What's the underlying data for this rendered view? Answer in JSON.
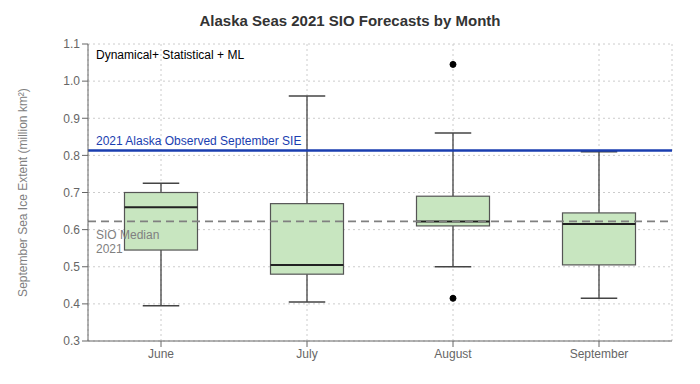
{
  "chart_data": {
    "type": "box",
    "title": "Alaska Seas 2021 SIO Forecasts by Month",
    "ylabel": "September Sea Ice Extent (million km²)",
    "categories": [
      "June",
      "July",
      "August",
      "September"
    ],
    "boxes": [
      {
        "low": 0.395,
        "q1": 0.545,
        "median": 0.66,
        "q3": 0.7,
        "high": 0.725,
        "fliers": []
      },
      {
        "low": 0.405,
        "q1": 0.48,
        "median": 0.505,
        "q3": 0.67,
        "high": 0.96,
        "fliers": []
      },
      {
        "low": 0.5,
        "q1": 0.61,
        "median": 0.622,
        "q3": 0.69,
        "high": 0.86,
        "fliers": [
          0.415,
          1.045
        ]
      },
      {
        "low": 0.415,
        "q1": 0.505,
        "median": 0.615,
        "q3": 0.645,
        "high": 0.81,
        "fliers": []
      }
    ],
    "color": "#c8e6c0",
    "reference_lines": [
      {
        "value": 0.813,
        "label": "2021 Alaska Observed September SIE",
        "color": "#1a3eb0",
        "line_style": "solid"
      },
      {
        "value": 0.622,
        "label": "SIO Median\n2021",
        "color": "#808080",
        "line_style": "dashed"
      }
    ],
    "annotations": [
      "Dynamical+ Statistical + ML"
    ],
    "ylim": [
      0.3,
      1.1
    ],
    "yticks": [
      0.3,
      0.4,
      0.5,
      0.6,
      0.7,
      0.8,
      0.9,
      {
        "value": 1.0,
        "label": "1.0"
      },
      1.1
    ],
    "grid": true
  }
}
